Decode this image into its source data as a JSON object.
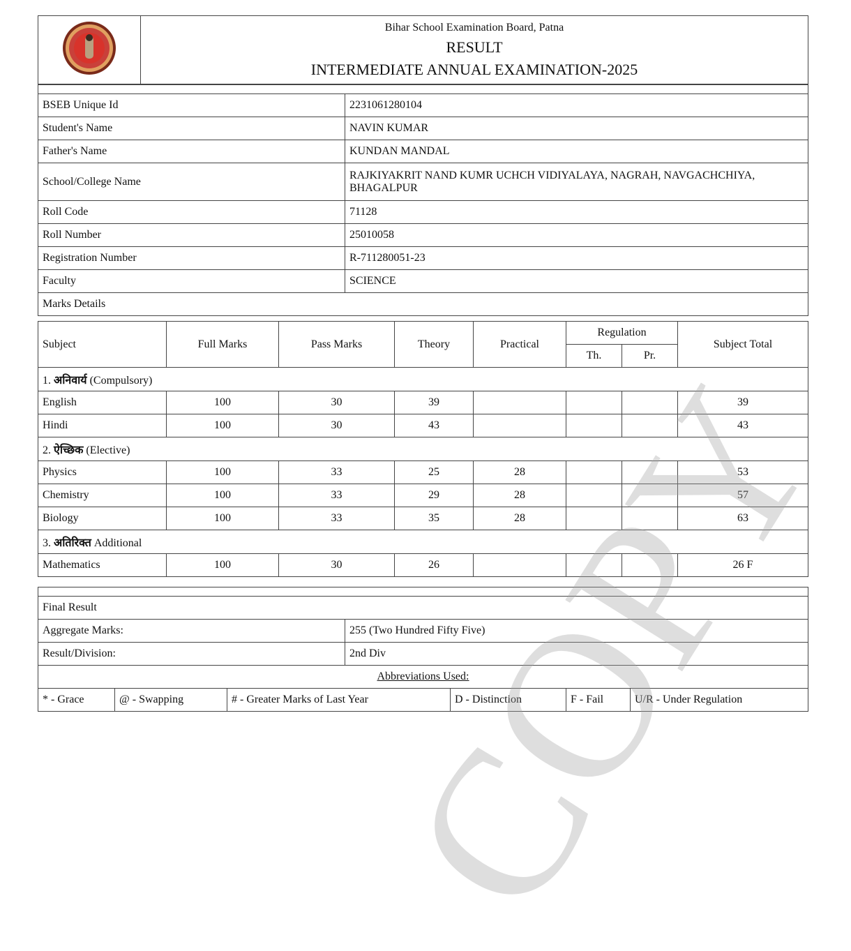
{
  "header": {
    "board": "Bihar School Examination Board, Patna",
    "title": "RESULT",
    "exam": "INTERMEDIATE ANNUAL EXAMINATION-2025",
    "logo": "Bihar School Examination Board seal"
  },
  "info": [
    {
      "label": "BSEB Unique Id",
      "value": "2231061280104"
    },
    {
      "label": "Student's Name",
      "value": "NAVIN KUMAR"
    },
    {
      "label": "Father's Name",
      "value": "KUNDAN MANDAL"
    },
    {
      "label": "School/College Name",
      "value": "RAJKIYAKRIT NAND KUMR UCHCH VIDIYALAYA, NAGRAH, NAVGACHCHIYA, BHAGALPUR"
    },
    {
      "label": "Roll Code",
      "value": "71128"
    },
    {
      "label": "Roll Number",
      "value": "25010058"
    },
    {
      "label": "Registration Number",
      "value": "R-711280051-23"
    },
    {
      "label": "Faculty",
      "value": "SCIENCE"
    }
  ],
  "marks_details_label": "Marks Details",
  "columns": {
    "subject": "Subject",
    "full": "Full Marks",
    "pass": "Pass Marks",
    "theory": "Theory",
    "practical": "Practical",
    "regulation": "Regulation",
    "reg_th": "Th.",
    "reg_pr": "Pr.",
    "total": "Subject Total"
  },
  "sections": [
    {
      "num": "1.",
      "hindi": "अनिवार्य",
      "english": "(Compulsory)",
      "rows": [
        {
          "subject": "English",
          "full": "100",
          "pass": "30",
          "theory": "39",
          "practical": "",
          "th": "",
          "pr": "",
          "total": "39"
        },
        {
          "subject": "Hindi",
          "full": "100",
          "pass": "30",
          "theory": "43",
          "practical": "",
          "th": "",
          "pr": "",
          "total": "43"
        }
      ]
    },
    {
      "num": "2.",
      "hindi": "ऐच्छिक",
      "english": "(Elective)",
      "rows": [
        {
          "subject": "Physics",
          "full": "100",
          "pass": "33",
          "theory": "25",
          "practical": "28",
          "th": "",
          "pr": "",
          "total": "53"
        },
        {
          "subject": "Chemistry",
          "full": "100",
          "pass": "33",
          "theory": "29",
          "practical": "28",
          "th": "",
          "pr": "",
          "total": "57"
        },
        {
          "subject": "Biology",
          "full": "100",
          "pass": "33",
          "theory": "35",
          "practical": "28",
          "th": "",
          "pr": "",
          "total": "63"
        }
      ]
    },
    {
      "num": "3.",
      "hindi": "अतिरिक्त",
      "english": "Additional",
      "rows": [
        {
          "subject": "Mathematics",
          "full": "100",
          "pass": "30",
          "theory": "26",
          "practical": "",
          "th": "",
          "pr": "",
          "total": "26 F"
        }
      ]
    }
  ],
  "final": {
    "label": "Final Result",
    "aggregate_label": "Aggregate Marks:",
    "aggregate_value": "255 (Two Hundred Fifty Five)",
    "division_label": "Result/Division:",
    "division_value": "2nd Div"
  },
  "abbreviations": {
    "title": "Abbreviations Used:",
    "items": [
      "* - Grace",
      "@ - Swapping",
      "# - Greater Marks of Last Year",
      "D - Distinction",
      "F - Fail",
      "U/R - Under Regulation"
    ]
  },
  "watermark": "COPY"
}
